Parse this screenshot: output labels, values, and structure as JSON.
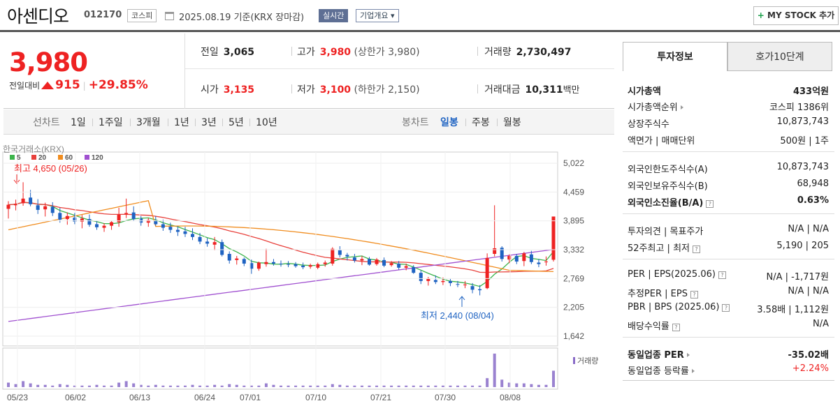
{
  "header": {
    "name": "아센디오",
    "code": "012170",
    "market": "코스피",
    "basis": "2025.08.19 기준(KRX 장마감)",
    "live": "실시간",
    "company": "기업개요 ▾",
    "mystock": "MY STOCK 추가"
  },
  "price": {
    "current": "3,980",
    "change_label": "전일대비",
    "change": "915",
    "change_pct": "+29.85%"
  },
  "stats": {
    "prev_label": "전일",
    "prev": "3,065",
    "high_label": "고가",
    "high": "3,980",
    "upper_label": "(상한가",
    "upper": "3,980)",
    "vol_label": "거래량",
    "vol": "2,730,497",
    "open_label": "시가",
    "open": "3,135",
    "low_label": "저가",
    "low": "3,100",
    "lower_label": "(하한가",
    "lower": "2,150)",
    "amt_label": "거래대금",
    "amt": "10,311",
    "amt_unit": "백만"
  },
  "period": {
    "line": "선차트",
    "d1": "1일",
    "w1": "1주일",
    "m3": "3개월",
    "y1": "1년",
    "y3": "3년",
    "y5": "5년",
    "y10": "10년",
    "candle": "봉차트",
    "daily": "일봉",
    "weekly": "주봉",
    "monthly": "월봉"
  },
  "chart_data": {
    "type": "candlestick",
    "source": "한국거래소(KRX)",
    "ma": [
      {
        "name": "5",
        "color": "#3cb44b"
      },
      {
        "name": "20",
        "color": "#e8413c"
      },
      {
        "name": "60",
        "color": "#f08c1e"
      },
      {
        "name": "120",
        "color": "#a050d0"
      }
    ],
    "y_ticks": [
      "5,022",
      "4,459",
      "3,895",
      "3,332",
      "2,769",
      "2,205",
      "1,642"
    ],
    "ylim": [
      1642,
      5022
    ],
    "x_ticks": [
      "05/23",
      "06/02",
      "06/13",
      "06/24",
      "07/01",
      "07/10",
      "07/21",
      "07/30",
      "08/08"
    ],
    "max_label": "최고 4,650 (05/26)",
    "min_label": "최저 2,440 (08/04)",
    "volume_label": "거래량",
    "candles": [
      [
        4130,
        4280,
        3940,
        4210
      ],
      [
        4200,
        4310,
        4100,
        4230
      ],
      [
        4240,
        4650,
        4190,
        4330
      ],
      [
        4350,
        4500,
        4180,
        4220
      ],
      [
        4200,
        4320,
        4030,
        4110
      ],
      [
        4120,
        4250,
        3980,
        4180
      ],
      [
        4170,
        4260,
        3990,
        4050
      ],
      [
        4050,
        4150,
        3860,
        3920
      ],
      [
        3930,
        4060,
        3820,
        3990
      ],
      [
        3960,
        4050,
        3830,
        3880
      ],
      [
        3880,
        4010,
        3750,
        3940
      ],
      [
        3930,
        4020,
        3780,
        3820
      ],
      [
        3830,
        3900,
        3720,
        3770
      ],
      [
        3760,
        3850,
        3680,
        3800
      ],
      [
        3800,
        3900,
        3720,
        3870
      ],
      [
        3870,
        4150,
        3780,
        4020
      ],
      [
        4030,
        4330,
        3950,
        4050
      ],
      [
        4060,
        4180,
        3890,
        3930
      ],
      [
        3940,
        3990,
        3800,
        3860
      ],
      [
        3860,
        3950,
        3780,
        3910
      ],
      [
        3900,
        3990,
        3800,
        3830
      ],
      [
        3830,
        3920,
        3700,
        3760
      ],
      [
        3780,
        3860,
        3660,
        3720
      ],
      [
        3720,
        3790,
        3600,
        3680
      ],
      [
        3690,
        3780,
        3580,
        3640
      ],
      [
        3640,
        3750,
        3520,
        3580
      ],
      [
        3580,
        3660,
        3440,
        3490
      ],
      [
        3490,
        3560,
        3390,
        3450
      ],
      [
        3430,
        3580,
        3320,
        3480
      ],
      [
        3480,
        3530,
        3200,
        3230
      ],
      [
        3250,
        3300,
        3060,
        3120
      ],
      [
        3130,
        3210,
        3040,
        3160
      ],
      [
        3150,
        3180,
        3010,
        3060
      ],
      [
        3070,
        3140,
        2860,
        2960
      ],
      [
        2960,
        3100,
        2920,
        3080
      ],
      [
        3050,
        3350,
        3000,
        3090
      ],
      [
        3090,
        3150,
        3020,
        3060
      ],
      [
        3060,
        3120,
        3000,
        3050
      ],
      [
        3050,
        3110,
        2990,
        3040
      ],
      [
        3050,
        3090,
        2980,
        3010
      ],
      [
        3020,
        3080,
        2950,
        2990
      ],
      [
        3000,
        3060,
        2960,
        3030
      ],
      [
        2980,
        3080,
        2950,
        3050
      ],
      [
        3050,
        3120,
        3000,
        3080
      ],
      [
        3060,
        3380,
        3020,
        3350
      ],
      [
        3320,
        3400,
        3180,
        3230
      ],
      [
        3230,
        3270,
        3120,
        3200
      ],
      [
        3180,
        3250,
        3080,
        3120
      ],
      [
        3120,
        3210,
        3030,
        3150
      ],
      [
        3150,
        3190,
        3020,
        3040
      ],
      [
        3050,
        3170,
        3020,
        3140
      ],
      [
        3130,
        3180,
        2990,
        3020
      ],
      [
        3030,
        3110,
        3000,
        3070
      ],
      [
        3060,
        3110,
        2940,
        2980
      ],
      [
        2980,
        3060,
        2930,
        3010
      ],
      [
        2990,
        3030,
        2860,
        2880
      ],
      [
        2880,
        2930,
        2660,
        2720
      ],
      [
        2720,
        2800,
        2630,
        2760
      ],
      [
        2740,
        2830,
        2660,
        2700
      ],
      [
        2700,
        2790,
        2640,
        2720
      ],
      [
        2720,
        2760,
        2620,
        2680
      ],
      [
        2660,
        2720,
        2600,
        2650
      ],
      [
        2640,
        2720,
        2580,
        2650
      ],
      [
        2620,
        2680,
        2480,
        2550
      ],
      [
        2560,
        2640,
        2440,
        2540
      ],
      [
        2580,
        3260,
        2560,
        3170
      ],
      [
        3250,
        4200,
        3200,
        3360
      ],
      [
        3370,
        3400,
        3100,
        3150
      ],
      [
        3140,
        3240,
        3070,
        3210
      ],
      [
        3210,
        3250,
        3050,
        3100
      ],
      [
        3110,
        3290,
        3010,
        3260
      ],
      [
        3240,
        3310,
        3050,
        3090
      ],
      [
        3080,
        3150,
        2990,
        3050
      ],
      [
        3090,
        3200,
        3020,
        3100
      ],
      [
        3135,
        3980,
        3100,
        3980
      ]
    ],
    "volumes": [
      6,
      4,
      8,
      5,
      3,
      3,
      2,
      4,
      3,
      2,
      2,
      2,
      3,
      2,
      2,
      6,
      8,
      5,
      3,
      2,
      3,
      2,
      2,
      2,
      2,
      3,
      2,
      2,
      3,
      2,
      4,
      3,
      2,
      2,
      2,
      5,
      3,
      2,
      2,
      2,
      2,
      2,
      2,
      2,
      4,
      3,
      2,
      2,
      2,
      2,
      2,
      2,
      2,
      2,
      2,
      2,
      2,
      2,
      2,
      2,
      2,
      2,
      2,
      2,
      2,
      12,
      45,
      10,
      6,
      5,
      5,
      4,
      3,
      3,
      22
    ],
    "ma5_color": "#3cb44b",
    "ma20_color": "#e8413c",
    "ma60_color": "#f08c1e",
    "ma120_color": "#a050d0"
  },
  "side": {
    "tab1": "투자정보",
    "tab2": "호가10단계",
    "cap_l": "시가총액",
    "cap_v": "433억원",
    "rank_l": "시가총액순위",
    "rank_v": "코스피 1386위",
    "shares_l": "상장주식수",
    "shares_v": "10,873,743",
    "face_l": "액면가 | 매매단위",
    "face_v": "500원 | 1주",
    "fl_l": "외국인한도주식수(A)",
    "fl_v": "10,873,743",
    "fh_l": "외국인보유주식수(B)",
    "fh_v": "68,948",
    "fr_l": "외국인소진율(B/A)",
    "fr_v": "0.63%",
    "op_l": "투자의견 | 목표주가",
    "op_v": "N/A | N/A",
    "w52_l": "52주최고 | 최저",
    "w52_v": "5,190 | 205",
    "per_l": "PER | EPS(2025.06)",
    "per_v": "N/A | -1,717원",
    "eper_l": "추정PER | EPS",
    "eper_v": "N/A | N/A",
    "pbr_l": "PBR | BPS (2025.06)",
    "pbr_v": "3.58배 | 1,112원",
    "div_l": "배당수익률",
    "div_v": "N/A",
    "sper_l": "동일업종 PER",
    "sper_v": "-35.02배",
    "srt_l": "동일업종 등락률",
    "srt_v": "+2.24%"
  }
}
